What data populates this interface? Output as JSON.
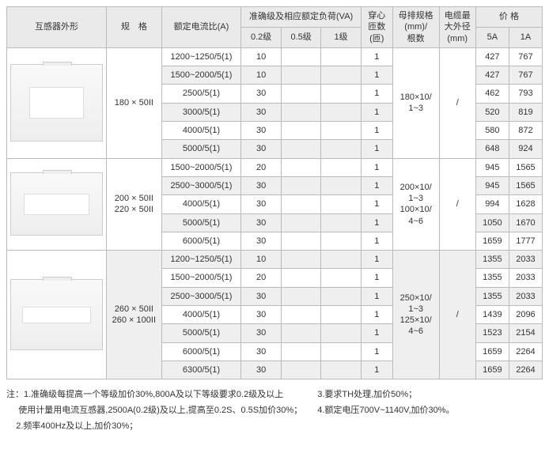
{
  "headers": {
    "shape": "互感器外形",
    "spec": "规　格",
    "ratio": "额定电流比(A)",
    "accuracy": "准确级及相应额定负荷(VA)",
    "acc02": "0.2级",
    "acc05": "0.5级",
    "acc1": "1级",
    "turns": "穿心\n匝数\n(匝)",
    "busbar": "母排规格\n(mm)/\n根数",
    "cable": "电缆最\n大外径\n(mm)",
    "price": "价 格",
    "p5a": "5A",
    "p1a": "1A"
  },
  "groups": [
    {
      "device_class": "d1",
      "spec": "180 × 50II",
      "busbar": "180×10/\n1~3",
      "cable": "/",
      "rows": [
        {
          "ratio": "1200~1250/5(1)",
          "a02": "10",
          "a05": "",
          "a1": "",
          "turns": "1",
          "p5": "427",
          "p1": "767",
          "alt": false
        },
        {
          "ratio": "1500~2000/5(1)",
          "a02": "10",
          "a05": "",
          "a1": "",
          "turns": "1",
          "p5": "427",
          "p1": "767",
          "alt": true
        },
        {
          "ratio": "2500/5(1)",
          "a02": "30",
          "a05": "",
          "a1": "",
          "turns": "1",
          "p5": "462",
          "p1": "793",
          "alt": false
        },
        {
          "ratio": "3000/5(1)",
          "a02": "30",
          "a05": "",
          "a1": "",
          "turns": "1",
          "p5": "520",
          "p1": "819",
          "alt": true
        },
        {
          "ratio": "4000/5(1)",
          "a02": "30",
          "a05": "",
          "a1": "",
          "turns": "1",
          "p5": "580",
          "p1": "872",
          "alt": false
        },
        {
          "ratio": "5000/5(1)",
          "a02": "30",
          "a05": "",
          "a1": "",
          "turns": "1",
          "p5": "648",
          "p1": "924",
          "alt": true
        }
      ]
    },
    {
      "device_class": "d2",
      "spec": "200 × 50II\n220 × 50II",
      "busbar": "200×10/\n1~3\n100×10/\n4~6",
      "cable": "/",
      "rows": [
        {
          "ratio": "1500~2000/5(1)",
          "a02": "20",
          "a05": "",
          "a1": "",
          "turns": "1",
          "p5": "945",
          "p1": "1565",
          "alt": false
        },
        {
          "ratio": "2500~3000/5(1)",
          "a02": "30",
          "a05": "",
          "a1": "",
          "turns": "1",
          "p5": "945",
          "p1": "1565",
          "alt": true
        },
        {
          "ratio": "4000/5(1)",
          "a02": "30",
          "a05": "",
          "a1": "",
          "turns": "1",
          "p5": "994",
          "p1": "1628",
          "alt": false
        },
        {
          "ratio": "5000/5(1)",
          "a02": "30",
          "a05": "",
          "a1": "",
          "turns": "1",
          "p5": "1050",
          "p1": "1670",
          "alt": true
        },
        {
          "ratio": "6000/5(1)",
          "a02": "30",
          "a05": "",
          "a1": "",
          "turns": "1",
          "p5": "1659",
          "p1": "1777",
          "alt": false
        }
      ]
    },
    {
      "device_class": "d3",
      "spec": "260 × 50II\n260 × 100II",
      "busbar": "250×10/\n1~3\n125×10/\n4~6",
      "cable": "/",
      "rows": [
        {
          "ratio": "1200~1250/5(1)",
          "a02": "10",
          "a05": "",
          "a1": "",
          "turns": "1",
          "p5": "1355",
          "p1": "2033",
          "alt": true
        },
        {
          "ratio": "1500~2000/5(1)",
          "a02": "20",
          "a05": "",
          "a1": "",
          "turns": "1",
          "p5": "1355",
          "p1": "2033",
          "alt": false
        },
        {
          "ratio": "2500~3000/5(1)",
          "a02": "30",
          "a05": "",
          "a1": "",
          "turns": "1",
          "p5": "1355",
          "p1": "2033",
          "alt": true
        },
        {
          "ratio": "4000/5(1)",
          "a02": "30",
          "a05": "",
          "a1": "",
          "turns": "1",
          "p5": "1439",
          "p1": "2096",
          "alt": false
        },
        {
          "ratio": "5000/5(1)",
          "a02": "30",
          "a05": "",
          "a1": "",
          "turns": "1",
          "p5": "1523",
          "p1": "2154",
          "alt": true
        },
        {
          "ratio": "6000/5(1)",
          "a02": "30",
          "a05": "",
          "a1": "",
          "turns": "1",
          "p5": "1659",
          "p1": "2264",
          "alt": false
        },
        {
          "ratio": "6300/5(1)",
          "a02": "30",
          "a05": "",
          "a1": "",
          "turns": "1",
          "p5": "1659",
          "p1": "2264",
          "alt": true
        }
      ]
    }
  ],
  "notes": {
    "label": "注：",
    "l1": "1.准确级每提高一个等级加价30%,800A及以下等级要求0.2级及以上",
    "l1b": "  使用计量用电流互感器,2500A(0.2级)及以上,提高至0.2S、0.5S加价30%；",
    "l2": "2.频率400Hz及以上,加价30%；",
    "l3": "3.要求TH处理,加价50%；",
    "l4": "4.额定电压700V~1140V,加价30%。"
  },
  "colwidths": {
    "shape": 120,
    "spec": 66,
    "ratio": 96,
    "acc": 48,
    "turns": 38,
    "busbar": 56,
    "cable": 44,
    "price": 40
  }
}
